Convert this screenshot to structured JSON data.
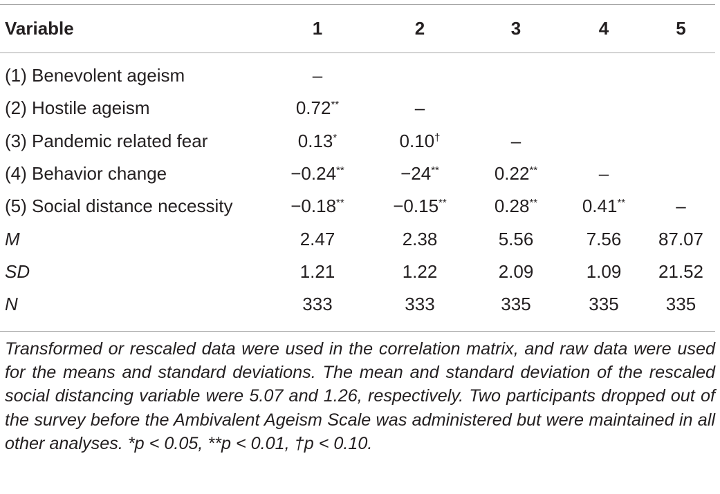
{
  "table": {
    "headers": [
      "Variable",
      "1",
      "2",
      "3",
      "4",
      "5"
    ],
    "rows": [
      {
        "label": "(1) Benevolent ageism",
        "italic": false,
        "cells": [
          "–",
          "",
          "",
          "",
          ""
        ]
      },
      {
        "label": "(2) Hostile ageism",
        "italic": false,
        "cells": [
          "0.72**",
          "–",
          "",
          "",
          ""
        ]
      },
      {
        "label": "(3) Pandemic related fear",
        "italic": false,
        "cells": [
          "0.13*",
          "0.10†",
          "–",
          "",
          ""
        ]
      },
      {
        "label": "(4) Behavior change",
        "italic": false,
        "cells": [
          "−0.24**",
          "−24**",
          "0.22**",
          "–",
          ""
        ]
      },
      {
        "label": "(5) Social distance necessity",
        "italic": false,
        "cells": [
          "−0.18**",
          "−0.15**",
          "0.28**",
          "0.41**",
          "–"
        ]
      },
      {
        "label": "M",
        "italic": true,
        "cells": [
          "2.47",
          "2.38",
          "5.56",
          "7.56",
          "87.07"
        ]
      },
      {
        "label": "SD",
        "italic": true,
        "cells": [
          "1.21",
          "1.22",
          "2.09",
          "1.09",
          "21.52"
        ]
      },
      {
        "label": "N",
        "italic": true,
        "cells": [
          "333",
          "333",
          "335",
          "335",
          "335"
        ]
      }
    ]
  },
  "footnote": "Transformed or rescaled data were used in the correlation matrix, and raw data were used for the means and standard deviations. The mean and standard deviation of the rescaled social distancing variable were 5.07 and 1.26, respectively. Two participants dropped out of the survey before the Ambivalent Ageism Scale was administered but were maintained in all other analyses. *p < 0.05, **p < 0.01, †p < 0.10."
}
